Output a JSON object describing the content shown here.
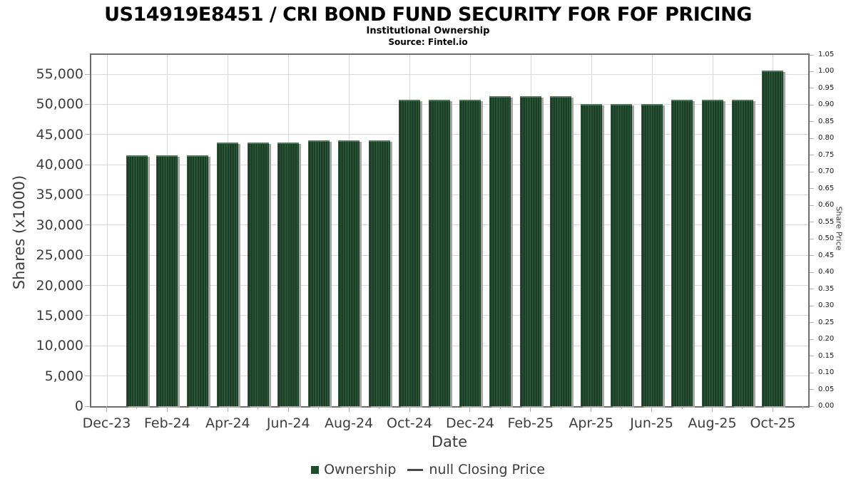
{
  "title": "US14919E8451 / CRI BOND FUND SECURITY FOR FOF PRICING",
  "subtitle": "Institutional Ownership",
  "source": "Source: Fintel.io",
  "colors": {
    "bar_stripe_dark": "#1b3c25",
    "bar_stripe_light": "#2f5c3b",
    "bar_top_edge": "#4e7a59",
    "bar_shadow": "#a6a6a6",
    "grid": "#d9d9d9",
    "plot_border": "#6e6e6e",
    "tick_mark": "#b3b3b3",
    "legend_square": "#1f4b2c",
    "legend_line": "#4a4a4a",
    "text": "#3d3d3d"
  },
  "chart_data": {
    "type": "bar",
    "title": "US14919E8451 / CRI BOND FUND SECURITY FOR FOF PRICING",
    "subtitle": "Institutional Ownership",
    "source": "Source: Fintel.io",
    "xlabel": "Date",
    "ylabel_left": "Shares (x1000)",
    "ylabel_right": "Share Price",
    "series_name": "Ownership",
    "price_series_name": "null Closing Price",
    "price_values": null,
    "legend_position": "bottom",
    "grid": true,
    "left_axis_ticks": [
      "0",
      "5,000",
      "10,000",
      "15,000",
      "20,000",
      "25,000",
      "30,000",
      "35,000",
      "40,000",
      "45,000",
      "50,000",
      "55,000"
    ],
    "left_tick_step": 5000,
    "left_axis_range": [
      0,
      58300
    ],
    "right_axis_ticks": [
      "0.00",
      "0.05",
      "0.10",
      "0.15",
      "0.20",
      "0.25",
      "0.30",
      "0.35",
      "0.40",
      "0.45",
      "0.50",
      "0.55",
      "0.60",
      "0.65",
      "0.70",
      "0.75",
      "0.80",
      "0.85",
      "0.90",
      "0.95",
      "1.00",
      "1.05"
    ],
    "right_axis_range": [
      0,
      1.05
    ],
    "x_tick_labels": [
      "Dec-23",
      "Feb-24",
      "Apr-24",
      "Jun-24",
      "Aug-24",
      "Oct-24",
      "Dec-24",
      "Feb-25",
      "Apr-25",
      "Jun-25",
      "Aug-25",
      "Oct-25"
    ],
    "categories": [
      "Jan-24",
      "Feb-24",
      "Mar-24",
      "Apr-24",
      "May-24",
      "Jun-24",
      "Jul-24",
      "Aug-24",
      "Sep-24",
      "Oct-24",
      "Nov-24",
      "Dec-24",
      "Jan-25",
      "Feb-25",
      "Mar-25",
      "Apr-25",
      "May-25",
      "Jun-25",
      "Jul-25",
      "Aug-25",
      "Sep-25",
      "Oct-25"
    ],
    "values": [
      41600,
      41600,
      41600,
      43700,
      43700,
      43700,
      44000,
      44000,
      44000,
      50800,
      50800,
      50800,
      51400,
      51400,
      51400,
      50000,
      50000,
      50000,
      50700,
      50700,
      50700,
      55600
    ]
  },
  "legend": {
    "ownership_label": "Ownership",
    "price_label": "null Closing Price"
  }
}
